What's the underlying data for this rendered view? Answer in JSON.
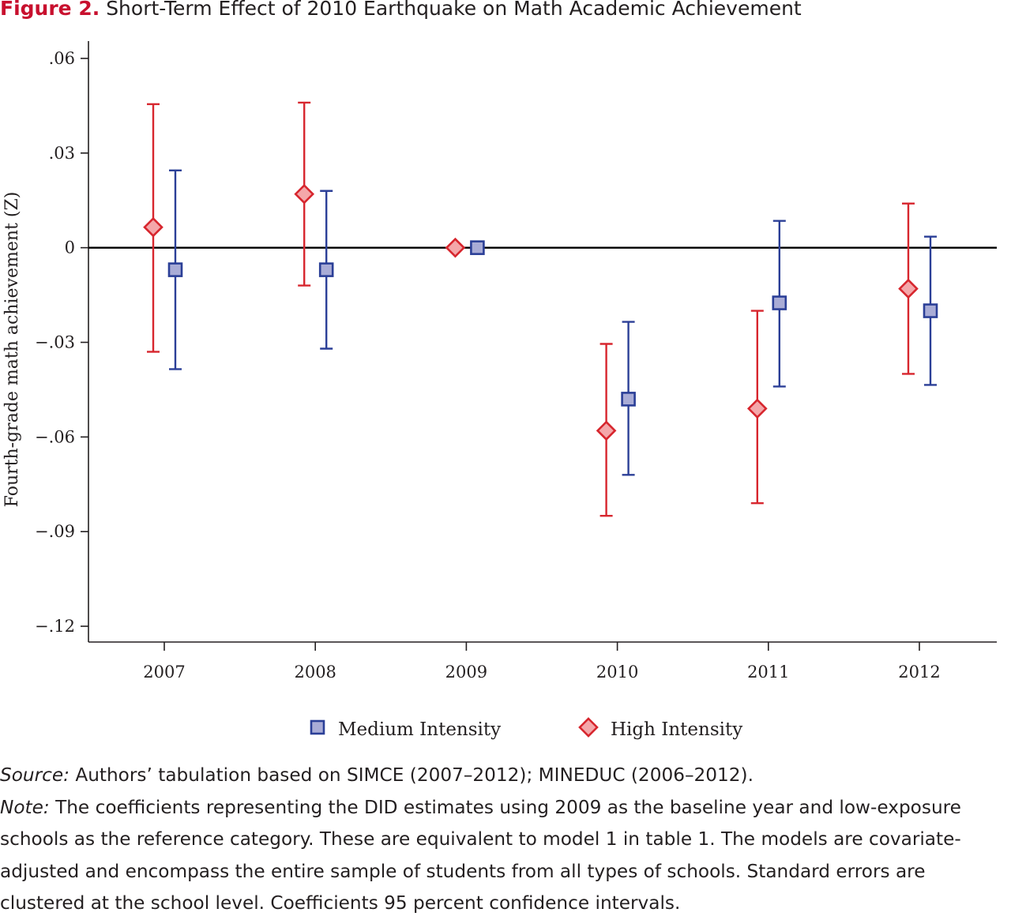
{
  "figure": {
    "label": "Figure 2.",
    "title": "Short-Term Effect of 2010 Earthquake on Math Academic Achievement"
  },
  "chart_data": {
    "type": "scatter",
    "ylabel": "Fourth-grade math achievement (Z)",
    "xlabel": "",
    "categories": [
      "2007",
      "2008",
      "2009",
      "2010",
      "2011",
      "2012"
    ],
    "yticks": [
      0.06,
      0.03,
      0,
      -0.03,
      -0.06,
      -0.09,
      -0.12
    ],
    "ytick_labels": [
      ".06",
      ".03",
      "0",
      "−.03",
      "−.06",
      "−.09",
      "−.12"
    ],
    "ylim": [
      -0.125,
      0.0655
    ],
    "reference_line": 0,
    "legend_position": "bottom",
    "series": [
      {
        "name": "Medium Intensity",
        "marker": "square",
        "color": "#2b3f97",
        "fill": "#a9acd6",
        "values": [
          -0.007,
          -0.007,
          0.0,
          -0.048,
          -0.0175,
          -0.02
        ],
        "ci_low": [
          -0.0385,
          -0.032,
          null,
          -0.072,
          -0.044,
          -0.0435
        ],
        "ci_high": [
          0.0245,
          0.018,
          null,
          -0.0235,
          0.0085,
          0.0035
        ]
      },
      {
        "name": "High Intensity",
        "marker": "diamond",
        "color": "#d7262e",
        "fill": "#f4a7aa",
        "values": [
          0.0065,
          0.017,
          0.0,
          -0.058,
          -0.051,
          -0.013
        ],
        "ci_low": [
          -0.033,
          -0.012,
          null,
          -0.085,
          -0.081,
          -0.04
        ],
        "ci_high": [
          0.0455,
          0.046,
          null,
          -0.0305,
          -0.02,
          0.014
        ]
      }
    ]
  },
  "footer": {
    "source_label": "Source:",
    "source_text": " Authors’ tabulation based on SIMCE (2007–2012); MINEDUC (2006–2012).",
    "note_label": "Note:",
    "note_text": " The coefficients representing the DID estimates using 2009 as the baseline year and low-exposure schools as the reference category. These are equivalent to model 1 in table 1. The models are covariate-adjusted and encompass the entire sample of students from all types of schools. Standard errors are clustered at the school level. Coefficients 95 percent confidence intervals."
  }
}
